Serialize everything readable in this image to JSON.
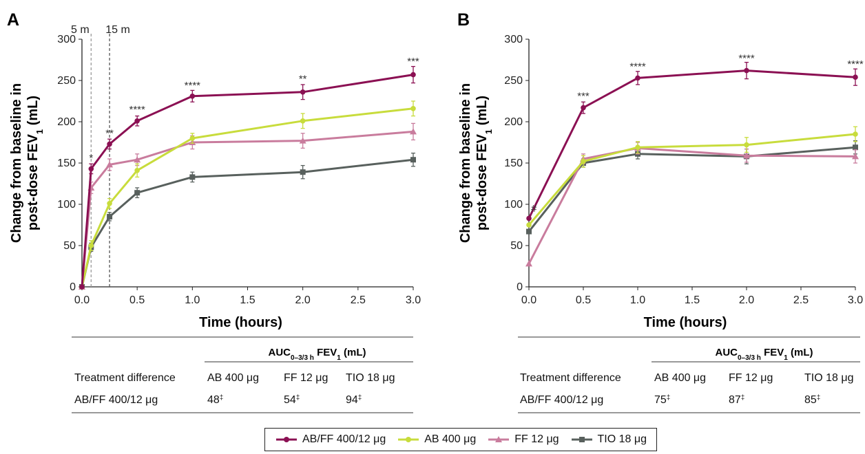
{
  "colors": {
    "abff": "#8b1053",
    "ab": "#c8dc3c",
    "ff": "#c97c9d",
    "tio": "#58605d"
  },
  "legend": [
    {
      "label": "AB/FF 400/12 μg",
      "color_key": "abff",
      "marker": "circle"
    },
    {
      "label": "AB 400 μg",
      "color_key": "ab",
      "marker": "circle"
    },
    {
      "label": "FF 12 μg",
      "color_key": "ff",
      "marker": "triangle"
    },
    {
      "label": "TIO 18 μg",
      "color_key": "tio",
      "marker": "square"
    }
  ],
  "chart_data": [
    {
      "panel": "A",
      "type": "line",
      "xlabel": "Time (hours)",
      "ylabel_line1": "Change from baseline in",
      "ylabel_line2": "post-dose FEV",
      "ylabel_sub": "1",
      "ylabel_suffix": " (mL)",
      "xlim": [
        0,
        3.0
      ],
      "ylim": [
        0,
        300
      ],
      "xticks": [
        "0.0",
        "0.5",
        "1.0",
        "1.5",
        "2.0",
        "2.5",
        "3.0"
      ],
      "yticks": [
        "0",
        "50",
        "100",
        "150",
        "200",
        "250",
        "300"
      ],
      "vlines": [
        {
          "x": 0.083,
          "label": "5 m"
        },
        {
          "x": 0.25,
          "label": "15 m"
        }
      ],
      "series": [
        {
          "name": "AB/FF 400/12 μg",
          "color_key": "abff",
          "marker": "circle",
          "x": [
            0,
            0.083,
            0.25,
            0.5,
            1.0,
            2.0,
            3.0
          ],
          "y": [
            0,
            143,
            173,
            201,
            231,
            236,
            257
          ],
          "err": [
            0,
            6,
            6,
            6,
            7,
            9,
            10
          ]
        },
        {
          "name": "AB 400 μg",
          "color_key": "ab",
          "marker": "circle",
          "x": [
            0,
            0.083,
            0.25,
            0.5,
            1.0,
            2.0,
            3.0
          ],
          "y": [
            0,
            50,
            101,
            141,
            180,
            201,
            216
          ],
          "err": [
            0,
            6,
            6,
            8,
            6,
            9,
            9
          ]
        },
        {
          "name": "FF 12 μg",
          "color_key": "ff",
          "marker": "triangle",
          "x": [
            0,
            0.083,
            0.25,
            0.5,
            1.0,
            2.0,
            3.0
          ],
          "y": [
            0,
            120,
            148,
            154,
            175,
            177,
            188
          ],
          "err": [
            0,
            7,
            7,
            7,
            8,
            9,
            10
          ]
        },
        {
          "name": "TIO 18 μg",
          "color_key": "tio",
          "marker": "square",
          "x": [
            0,
            0.083,
            0.25,
            0.5,
            1.0,
            2.0,
            3.0
          ],
          "y": [
            0,
            48,
            85,
            114,
            133,
            139,
            154
          ],
          "err": [
            0,
            5,
            5,
            6,
            6,
            8,
            8
          ]
        }
      ],
      "annotations": [
        {
          "x": 0.083,
          "y": 152,
          "text": "*"
        },
        {
          "x": 0.25,
          "y": 182,
          "text": "**"
        },
        {
          "x": 0.5,
          "y": 211,
          "text": "****"
        },
        {
          "x": 1.0,
          "y": 240,
          "text": "****"
        },
        {
          "x": 2.0,
          "y": 248,
          "text": "**"
        },
        {
          "x": 3.0,
          "y": 269,
          "text": "***"
        }
      ],
      "table": {
        "header": "AUC",
        "header_sub": "0–3/3 h",
        "header_rest": " FEV",
        "header_sub2": "1",
        "header_unit": " (mL)",
        "columns": [
          "Treatment difference",
          "AB 400 μg",
          "FF 12 μg",
          "TIO 18 μg"
        ],
        "rows": [
          {
            "label": "AB/FF 400/12 μg",
            "values": [
              "48",
              "54",
              "94"
            ],
            "mark": "‡"
          }
        ]
      }
    },
    {
      "panel": "B",
      "type": "line",
      "xlabel": "Time (hours)",
      "ylabel_line1": "Change from baseline in",
      "ylabel_line2": "post-dose FEV",
      "ylabel_sub": "1",
      "ylabel_suffix": " (mL)",
      "xlim": [
        0,
        3.0
      ],
      "ylim": [
        0,
        300
      ],
      "xticks": [
        "0.0",
        "0.5",
        "1.0",
        "1.5",
        "2.0",
        "2.5",
        "3.0"
      ],
      "yticks": [
        "0",
        "50",
        "100",
        "150",
        "200",
        "250",
        "300"
      ],
      "vlines": [],
      "series": [
        {
          "name": "AB/FF 400/12 μg",
          "color_key": "abff",
          "marker": "circle",
          "x": [
            0,
            0.5,
            1.0,
            2.0,
            3.0
          ],
          "y": [
            83,
            217,
            253,
            262,
            254
          ],
          "err": [
            0,
            7,
            8,
            10,
            10
          ]
        },
        {
          "name": "AB 400 μg",
          "color_key": "ab",
          "marker": "circle",
          "x": [
            0,
            0.5,
            1.0,
            2.0,
            3.0
          ],
          "y": [
            75,
            152,
            169,
            172,
            185
          ],
          "err": [
            0,
            7,
            7,
            9,
            9
          ]
        },
        {
          "name": "FF 12 μg",
          "color_key": "ff",
          "marker": "triangle",
          "x": [
            0,
            0.5,
            1.0,
            2.0,
            3.0
          ],
          "y": [
            28,
            155,
            168,
            159,
            158
          ],
          "err": [
            0,
            6,
            7,
            8,
            8
          ]
        },
        {
          "name": "TIO 18 μg",
          "color_key": "tio",
          "marker": "square",
          "x": [
            0,
            0.5,
            1.0,
            2.0,
            3.0
          ],
          "y": [
            67,
            150,
            161,
            158,
            169
          ],
          "err": [
            0,
            5,
            6,
            9,
            8
          ]
        }
      ],
      "annotations": [
        {
          "x": 0.0,
          "y": 91,
          "text": "#"
        },
        {
          "x": 0.5,
          "y": 227,
          "text": "***"
        },
        {
          "x": 1.0,
          "y": 263,
          "text": "****"
        },
        {
          "x": 2.0,
          "y": 273,
          "text": "****"
        },
        {
          "x": 3.0,
          "y": 266,
          "text": "****"
        }
      ],
      "table": {
        "header": "AUC",
        "header_sub": "0–3/3 h",
        "header_rest": " FEV",
        "header_sub2": "1",
        "header_unit": " (mL)",
        "columns": [
          "Treatment difference",
          "AB 400 μg",
          "FF 12 μg",
          "TIO 18 μg"
        ],
        "rows": [
          {
            "label": "AB/FF 400/12 μg",
            "values": [
              "75",
              "87",
              "85"
            ],
            "mark": "‡"
          }
        ]
      }
    }
  ]
}
